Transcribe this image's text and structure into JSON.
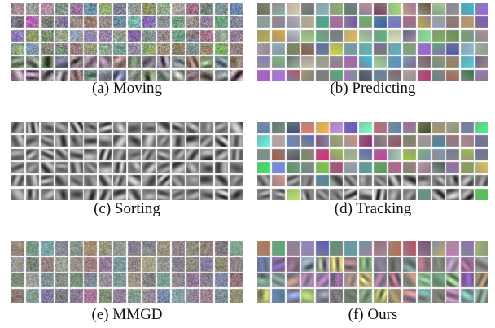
{
  "panels": [
    {
      "id": "a",
      "caption": "(a) Moving",
      "rows": 6,
      "cols": 16,
      "style": "noisy-color"
    },
    {
      "id": "b",
      "caption": "(b) Predicting",
      "rows": 6,
      "cols": 16,
      "style": "smooth-color"
    },
    {
      "id": "c",
      "caption": "(c) Sorting",
      "rows": 6,
      "cols": 16,
      "style": "gabor-gray"
    },
    {
      "id": "d",
      "caption": "(d) Tracking",
      "rows": 6,
      "cols": 16,
      "style": "mixed-tracking"
    },
    {
      "id": "e",
      "caption": "(e) MMGD",
      "rows": 4,
      "cols": 16,
      "style": "noisy-muted"
    },
    {
      "id": "f",
      "caption": "(f) Ours",
      "rows": 4,
      "cols": 16,
      "style": "gabor-color"
    }
  ]
}
